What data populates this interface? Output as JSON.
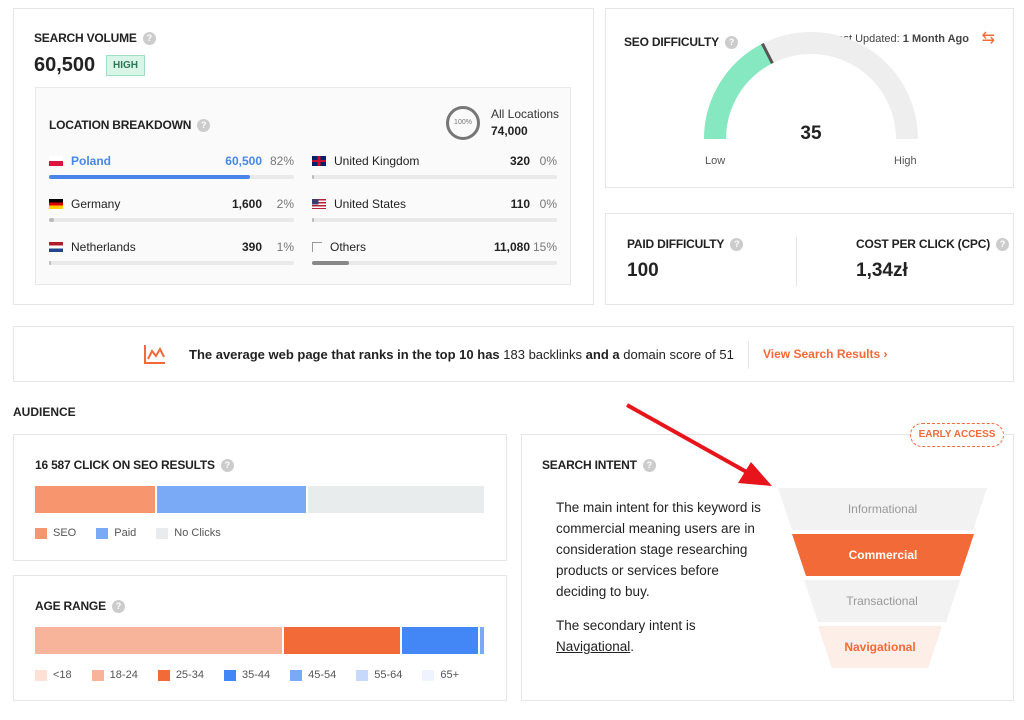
{
  "search_volume": {
    "title": "SEARCH VOLUME",
    "value": "60,500",
    "badge": "HIGH"
  },
  "location": {
    "title": "LOCATION BREAKDOWN",
    "ring_label": "100%",
    "all_label": "All Locations",
    "all_value": "74,000",
    "items": [
      {
        "name": "Poland",
        "value": "60,500",
        "pct": "82%",
        "fill": 82
      },
      {
        "name": "Germany",
        "value": "1,600",
        "pct": "2%",
        "fill": 2
      },
      {
        "name": "Netherlands",
        "value": "390",
        "pct": "1%",
        "fill": 1
      },
      {
        "name": "United Kingdom",
        "value": "320",
        "pct": "0%",
        "fill": 0
      },
      {
        "name": "United States",
        "value": "110",
        "pct": "0%",
        "fill": 0
      },
      {
        "name": "Others",
        "value": "11,080",
        "pct": "15%",
        "fill": 15
      }
    ]
  },
  "seo_difficulty": {
    "title": "SEO DIFFICULTY",
    "updated_label": "Last Updated:",
    "updated_value": "1 Month Ago",
    "value": "35",
    "value_num": 35,
    "low": "Low",
    "high": "High",
    "color": "#86e8c0"
  },
  "paid_difficulty": {
    "title": "PAID DIFFICULTY",
    "value": "100"
  },
  "cpc": {
    "title": "COST PER CLICK (CPC)",
    "value": "1,34zł"
  },
  "banner": {
    "t1": "The average web page that ranks in the top 10 has ",
    "backlinks": "183 backlinks",
    "t2": " and a ",
    "domain": "domain score of 51",
    "link": "View Search Results ›"
  },
  "audience": {
    "title": "AUDIENCE"
  },
  "clicks": {
    "title": "16 587 CLICK ON SEO RESULTS",
    "segments": [
      {
        "name": "SEO",
        "pct": 27,
        "color": "#f7956f"
      },
      {
        "name": "Paid",
        "pct": 33.5,
        "color": "#7aaaf5"
      },
      {
        "name": "No Clicks",
        "pct": 39.5,
        "color": "#e9ecec"
      }
    ]
  },
  "age": {
    "title": "AGE RANGE",
    "segments": [
      {
        "name": "<18",
        "pct": 0,
        "color": "#fde0d6"
      },
      {
        "name": "18-24",
        "pct": 55.5,
        "color": "#f8b39b"
      },
      {
        "name": "25-34",
        "pct": 26,
        "color": "#f26a38"
      },
      {
        "name": "35-44",
        "pct": 17,
        "color": "#4287f5"
      },
      {
        "name": "45-54",
        "pct": 1,
        "color": "#7aaaf5"
      },
      {
        "name": "55-64",
        "pct": 0,
        "color": "#c6d8fb"
      },
      {
        "name": "65+",
        "pct": 0,
        "color": "#eef3fd"
      }
    ]
  },
  "intent": {
    "title": "SEARCH INTENT",
    "badge": "EARLY ACCESS",
    "p1": "The main intent for this keyword is commercial meaning users are in consideration stage researching products or services before deciding to buy.",
    "p2": "The secondary intent is ",
    "secondary": "Navigational",
    "p2end": ".",
    "funnel": [
      "Informational",
      "Commercial",
      "Transactional",
      "Navigational"
    ]
  }
}
